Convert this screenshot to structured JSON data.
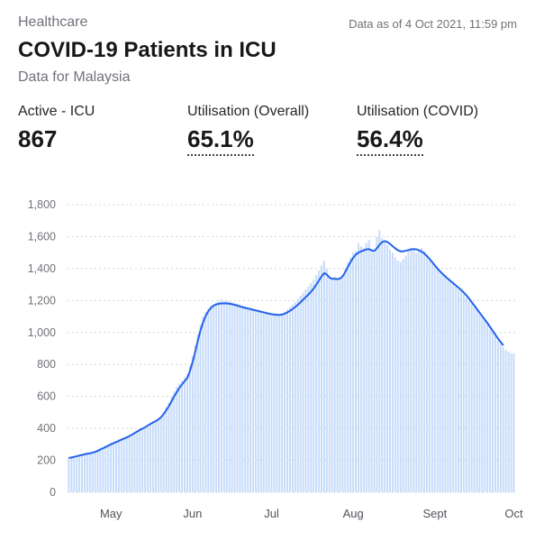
{
  "header": {
    "category": "Healthcare",
    "as_of": "Data as of 4 Oct 2021, 11:59 pm",
    "title": "COVID-19 Patients in ICU",
    "subtitle": "Data for Malaysia"
  },
  "stats": [
    {
      "label": "Active - ICU",
      "value": "867"
    },
    {
      "label": "Utilisation (Overall)",
      "value": "65.1%"
    },
    {
      "label": "Utilisation (COVID)",
      "value": "56.4%"
    }
  ],
  "colors": {
    "bar": "#c7dcfa",
    "line": "#2563eb",
    "grid": "#d4d4d8"
  },
  "chart_data": {
    "type": "bar",
    "title": "",
    "xlabel": "",
    "ylabel": "",
    "ylim": [
      0,
      1800
    ],
    "y_ticks": [
      0,
      200,
      400,
      600,
      800,
      1000,
      1200,
      1400,
      1600,
      1800
    ],
    "y_tick_labels": [
      "0",
      "200",
      "400",
      "600",
      "800",
      "1,000",
      "1,200",
      "1,400",
      "1,600",
      "1,800"
    ],
    "x_labels": [
      "May",
      "Jun",
      "Jul",
      "Aug",
      "Sept",
      "Oct"
    ],
    "x_label_day_index": [
      16,
      47,
      77,
      108,
      139,
      169
    ],
    "grid": true,
    "series": [
      {
        "kind": "bar",
        "values": [
          220,
          215,
          225,
          230,
          235,
          240,
          245,
          248,
          250,
          255,
          260,
          270,
          280,
          285,
          290,
          300,
          310,
          315,
          320,
          330,
          335,
          340,
          345,
          355,
          365,
          375,
          385,
          395,
          400,
          410,
          420,
          430,
          440,
          445,
          455,
          470,
          500,
          530,
          560,
          600,
          630,
          660,
          680,
          700,
          720,
          740,
          790,
          850,
          920,
          990,
          1050,
          1100,
          1130,
          1150,
          1170,
          1180,
          1190,
          1200,
          1210,
          1200,
          1200,
          1195,
          1190,
          1185,
          1180,
          1175,
          1170,
          1165,
          1160,
          1155,
          1150,
          1145,
          1140,
          1135,
          1130,
          1130,
          1125,
          1120,
          1120,
          1115,
          1115,
          1120,
          1130,
          1145,
          1160,
          1175,
          1190,
          1210,
          1230,
          1250,
          1270,
          1290,
          1310,
          1330,
          1360,
          1390,
          1420,
          1450,
          1400,
          1340,
          1330,
          1350,
          1340,
          1345,
          1360,
          1400,
          1440,
          1470,
          1500,
          1510,
          1560,
          1540,
          1530,
          1560,
          1580,
          1520,
          1500,
          1600,
          1640,
          1590,
          1570,
          1550,
          1520,
          1500,
          1470,
          1450,
          1440,
          1460,
          1480,
          1510,
          1530,
          1520,
          1500,
          1520,
          1530,
          1510,
          1490,
          1470,
          1440,
          1420,
          1400,
          1390,
          1370,
          1360,
          1340,
          1320,
          1310,
          1290,
          1270,
          1260,
          1240,
          1220,
          1200,
          1180,
          1160,
          1140,
          1120,
          1100,
          1080,
          1050,
          1020,
          1000,
          980,
          950,
          930,
          910,
          890,
          880,
          870,
          867
        ]
      },
      {
        "kind": "line",
        "values": [
          215,
          218,
          222,
          226,
          230,
          234,
          238,
          241,
          244,
          248,
          253,
          260,
          268,
          276,
          284,
          292,
          300,
          308,
          315,
          322,
          330,
          337,
          344,
          352,
          361,
          371,
          381,
          391,
          399,
          408,
          418,
          428,
          437,
          446,
          456,
          470,
          490,
          514,
          540,
          570,
          600,
          628,
          654,
          676,
          696,
          716,
          760,
          815,
          880,
          950,
          1015,
          1065,
          1105,
          1135,
          1155,
          1168,
          1176,
          1180,
          1182,
          1183,
          1182,
          1180,
          1177,
          1173,
          1168,
          1163,
          1158,
          1154,
          1150,
          1146,
          1142,
          1138,
          1134,
          1130,
          1126,
          1122,
          1118,
          1115,
          1112,
          1110,
          1110,
          1112,
          1118,
          1126,
          1136,
          1148,
          1160,
          1174,
          1190,
          1206,
          1222,
          1238,
          1256,
          1276,
          1300,
          1326,
          1352,
          1372,
          1362,
          1344,
          1336,
          1336,
          1334,
          1338,
          1352,
          1380,
          1412,
          1442,
          1468,
          1488,
          1500,
          1508,
          1514,
          1520,
          1522,
          1514,
          1510,
          1528,
          1550,
          1566,
          1572,
          1566,
          1554,
          1540,
          1526,
          1514,
          1508,
          1508,
          1512,
          1516,
          1520,
          1522,
          1520,
          1514,
          1506,
          1494,
          1478,
          1460,
          1440,
          1420,
          1400,
          1382,
          1366,
          1350,
          1336,
          1322,
          1308,
          1294,
          1280,
          1266,
          1250,
          1232,
          1212,
          1190,
          1168,
          1146,
          1124,
          1102,
          1080,
          1058,
          1034,
          1010,
          986,
          962,
          940,
          920
        ]
      }
    ]
  }
}
